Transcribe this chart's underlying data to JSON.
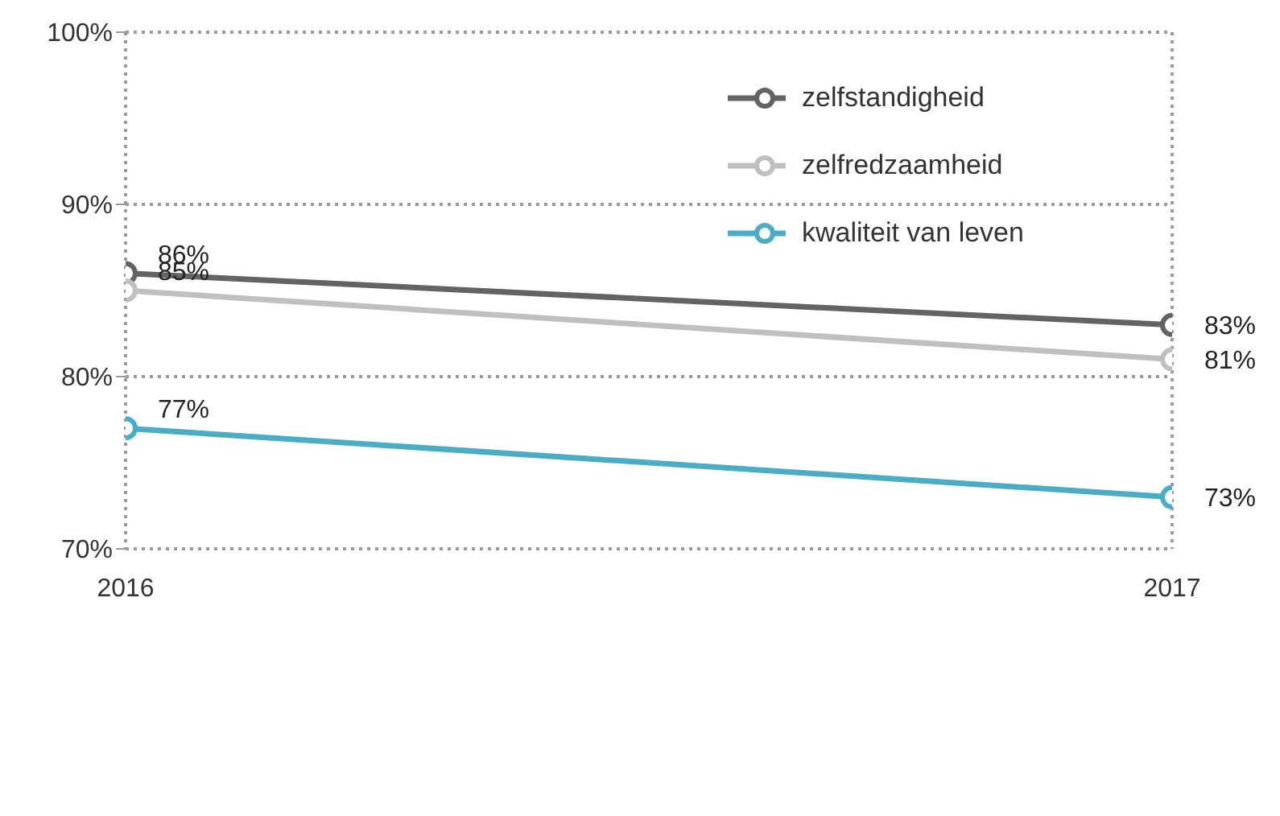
{
  "chart_data": {
    "type": "line",
    "x": [
      2016,
      2017
    ],
    "xlim": [
      2016,
      2017
    ],
    "xticks": [
      2016,
      2017
    ],
    "series": [
      {
        "name": "zelfstandigheid",
        "color": "#636363",
        "values": [
          86,
          83
        ],
        "value_labels": [
          "86%",
          "83%"
        ]
      },
      {
        "name": "zelfredzaamheid",
        "color": "#bfbfbf",
        "values": [
          85,
          81
        ],
        "value_labels": [
          "85%",
          "81%"
        ]
      },
      {
        "name": "kwaliteit van leven",
        "color": "#4bacc6",
        "values": [
          77,
          73
        ],
        "value_labels": [
          "77%",
          "73%"
        ]
      }
    ],
    "ylim": [
      70,
      100
    ],
    "yticks": [
      {
        "value": 70,
        "label": "70%"
      },
      {
        "value": 80,
        "label": "80%"
      },
      {
        "value": 90,
        "label": "90%"
      },
      {
        "value": 100,
        "label": "100%"
      }
    ],
    "grid": true,
    "legend": "top right",
    "marker": "circle",
    "line_style": "solid"
  }
}
